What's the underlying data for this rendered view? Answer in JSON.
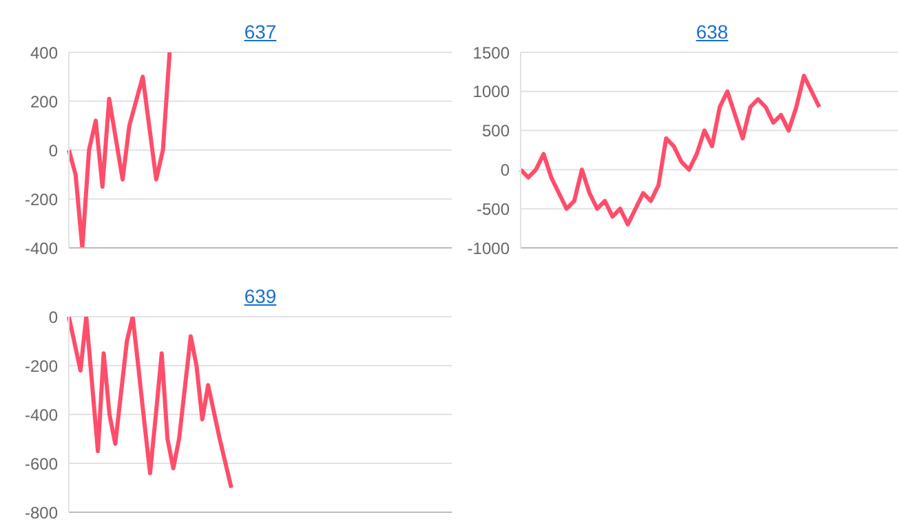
{
  "chart_data": [
    {
      "type": "line",
      "title": "637",
      "categories": [
        null,
        null,
        null,
        null,
        null,
        null,
        null,
        null,
        null,
        null,
        null,
        null,
        null,
        null,
        null,
        null,
        null,
        null,
        null,
        null,
        null,
        null,
        null,
        null,
        null,
        null,
        null,
        null,
        null,
        null,
        null,
        null,
        null,
        null,
        null,
        null,
        null,
        null,
        null,
        null,
        null,
        null,
        null,
        null,
        null,
        null,
        null,
        null,
        null,
        null,
        null,
        null,
        null,
        null,
        null,
        null,
        null,
        null
      ],
      "series": [
        {
          "color": "#ff4d6a",
          "values": [
            0,
            -100,
            -400,
            0,
            120,
            -150,
            210,
            45,
            -120,
            100,
            200,
            300,
            90,
            -120,
            0,
            400,
            null,
            null,
            null,
            null,
            null,
            null,
            null,
            null,
            null,
            null,
            null,
            null,
            null,
            null,
            null,
            null,
            null,
            null,
            null,
            null,
            null,
            null,
            null,
            null,
            null,
            null,
            null,
            null,
            null,
            null,
            null,
            null,
            null,
            null,
            null,
            null,
            null,
            null,
            null,
            null,
            null,
            null
          ]
        }
      ],
      "ylim": [
        -400,
        400
      ],
      "yticks": [
        -400,
        -200,
        0,
        200,
        400
      ],
      "grid": "y",
      "tick_labels": "y",
      "marker": "none",
      "line_style": "solid"
    },
    {
      "type": "line",
      "title": "638",
      "categories": [
        null,
        null,
        null,
        null,
        null,
        null,
        null,
        null,
        null,
        null,
        null,
        null,
        null,
        null,
        null,
        null,
        null,
        null,
        null,
        null,
        null,
        null,
        null,
        null,
        null,
        null,
        null,
        null,
        null,
        null,
        null,
        null,
        null,
        null,
        null,
        null,
        null,
        null,
        null,
        null,
        null,
        null,
        null,
        null,
        null,
        null,
        null,
        null,
        null,
        null,
        null
      ],
      "series": [
        {
          "color": "#ff4d6a",
          "values": [
            0,
            -100,
            0,
            200,
            -100,
            -300,
            -500,
            -400,
            0,
            -300,
            -500,
            -400,
            -600,
            -500,
            -700,
            -500,
            -300,
            -400,
            -200,
            400,
            300,
            100,
            0,
            200,
            500,
            300,
            800,
            1000,
            700,
            400,
            800,
            900,
            800,
            600,
            700,
            500,
            800,
            1200,
            1000,
            800,
            null,
            null,
            null,
            null,
            null,
            null,
            null,
            null,
            null,
            null,
            null
          ]
        }
      ],
      "ylim": [
        -1000,
        1500
      ],
      "yticks": [
        -1000,
        -500,
        0,
        500,
        1000,
        1500
      ],
      "grid": "y",
      "tick_labels": "y",
      "marker": "none",
      "line_style": "solid"
    },
    {
      "type": "line",
      "title": "639",
      "categories": [
        null,
        null,
        null,
        null,
        null,
        null,
        null,
        null,
        null,
        null,
        null,
        null,
        null,
        null,
        null,
        null,
        null,
        null,
        null,
        null,
        null,
        null,
        null,
        null,
        null,
        null,
        null,
        null,
        null,
        null,
        null,
        null,
        null,
        null,
        null,
        null,
        null,
        null,
        null,
        null,
        null,
        null,
        null,
        null,
        null,
        null,
        null,
        null,
        null,
        null,
        null,
        null,
        null,
        null,
        null,
        null,
        null,
        null,
        null,
        null,
        null,
        null,
        null,
        null,
        null,
        null,
        null
      ],
      "series": [
        {
          "color": "#ff4d6a",
          "values": [
            0,
            -110,
            -220,
            0,
            -275,
            -550,
            -150,
            -400,
            -520,
            -310,
            -100,
            0,
            -210,
            -430,
            -640,
            -400,
            -150,
            -500,
            -620,
            -500,
            -290,
            -80,
            -200,
            -420,
            -280,
            -390,
            -500,
            -600,
            -700,
            null,
            null,
            null,
            null,
            null,
            null,
            null,
            null,
            null,
            null,
            null,
            null,
            null,
            null,
            null,
            null,
            null,
            null,
            null,
            null,
            null,
            null,
            null,
            null,
            null,
            null,
            null,
            null,
            null,
            null,
            null,
            null,
            null,
            null,
            null,
            null,
            null,
            null
          ]
        }
      ],
      "ylim": [
        -800,
        0
      ],
      "yticks": [
        -800,
        -600,
        -400,
        -200,
        0
      ],
      "grid": "y",
      "tick_labels": "y",
      "marker": "none",
      "line_style": "solid"
    }
  ]
}
